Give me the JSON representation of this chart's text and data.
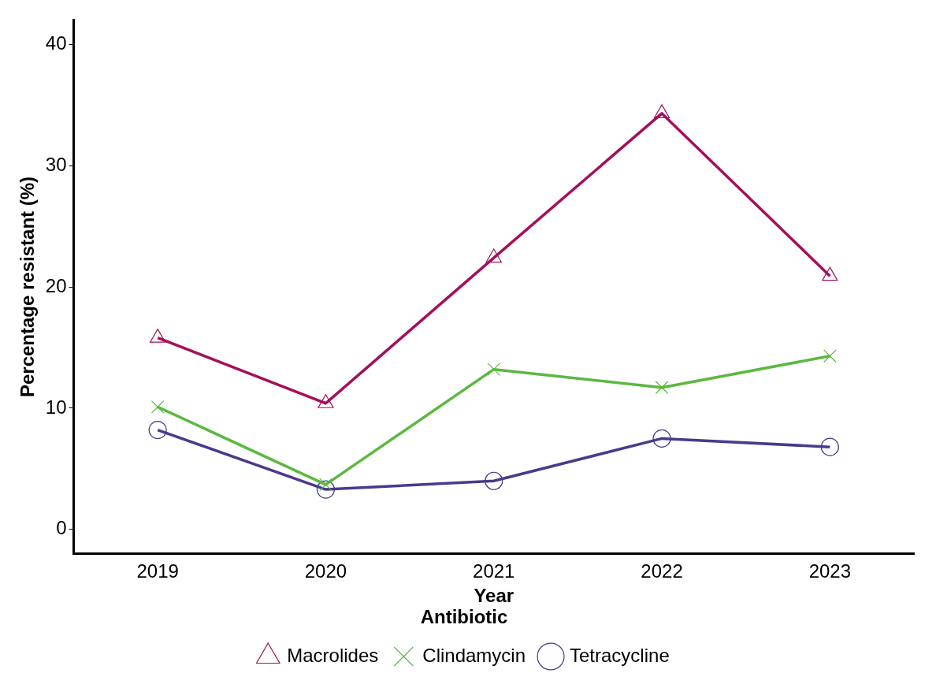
{
  "chart_data": {
    "type": "line",
    "xlabel": "Year",
    "ylabel": "Percentage resistant (%)",
    "legend_title": "Antibiotic",
    "categories": [
      "2019",
      "2020",
      "2021",
      "2022",
      "2023"
    ],
    "series": [
      {
        "name": "Macrolides",
        "color": "#a50f5a",
        "marker": "triangle",
        "values": [
          15.8,
          10.4,
          22.4,
          34.3,
          20.9
        ]
      },
      {
        "name": "Clindamycin",
        "color": "#5cb840",
        "marker": "cross",
        "values": [
          10.1,
          3.7,
          13.2,
          11.7,
          14.3
        ]
      },
      {
        "name": "Tetracycline",
        "color": "#4a3a8c",
        "marker": "circle",
        "values": [
          8.2,
          3.3,
          4.0,
          7.5,
          6.8
        ]
      }
    ],
    "ylim": [
      -2,
      42
    ],
    "yticks": [
      0,
      10,
      20,
      30,
      40
    ],
    "grid": false,
    "legend": "bottom",
    "line_style": "solid"
  }
}
